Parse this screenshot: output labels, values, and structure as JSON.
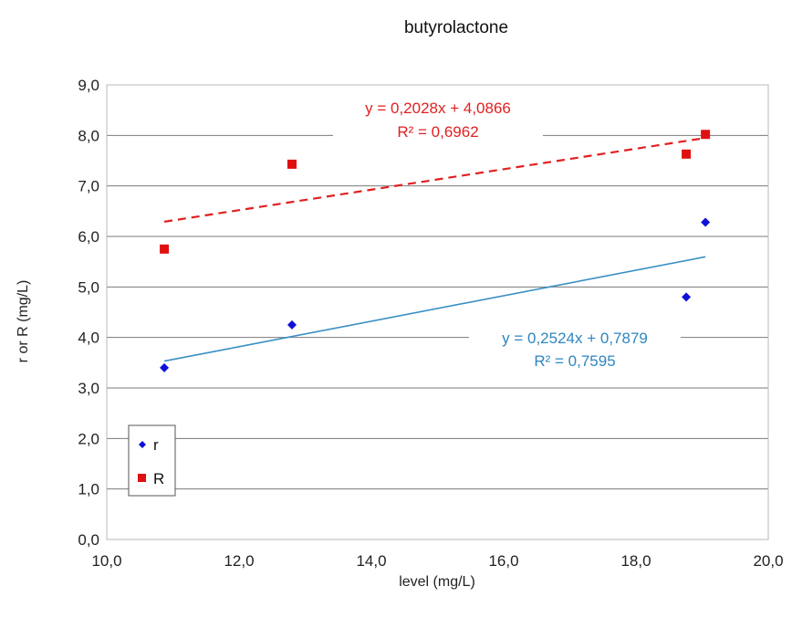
{
  "chart_data": {
    "type": "scatter",
    "title": "butyrolactone",
    "xlabel": "level (mg/L)",
    "ylabel": "r or R (mg/L)",
    "xlim": [
      10.0,
      20.0
    ],
    "ylim": [
      0.0,
      9.0
    ],
    "x_ticks": [
      "10,0",
      "12,0",
      "14,0",
      "16,0",
      "18,0",
      "20,0"
    ],
    "y_ticks": [
      "0,0",
      "1,0",
      "2,0",
      "3,0",
      "4,0",
      "5,0",
      "6,0",
      "7,0",
      "8,0",
      "9,0"
    ],
    "grid": "horizontal",
    "legend_position": "bottom-left",
    "series": [
      {
        "name": "r",
        "color": "#1010d8",
        "marker": "diamond",
        "points": [
          [
            10.87,
            3.4
          ],
          [
            12.8,
            4.25
          ],
          [
            18.76,
            4.8
          ],
          [
            19.05,
            6.28
          ]
        ],
        "trendline": {
          "slope": 0.2524,
          "intercept": 0.7879,
          "equation": "y = 0,2524x + 0,7879",
          "r2": "R² = 0,7595",
          "color": "#3a8fc4",
          "style": "solid"
        }
      },
      {
        "name": "R",
        "color": "#e01010",
        "marker": "square",
        "points": [
          [
            10.87,
            5.75
          ],
          [
            12.8,
            7.43
          ],
          [
            18.76,
            7.63
          ],
          [
            19.05,
            8.02
          ]
        ],
        "trendline": {
          "slope": 0.2028,
          "intercept": 4.0866,
          "equation": "y = 0,2028x + 4,0866",
          "r2": "R² = 0,6962",
          "color": "#e02020",
          "style": "dashed"
        }
      }
    ]
  }
}
